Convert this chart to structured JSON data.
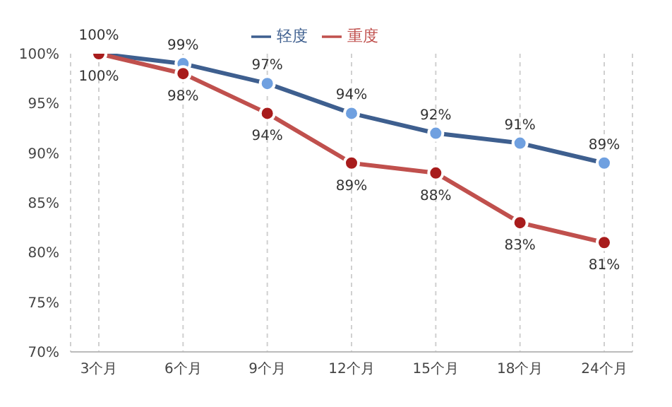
{
  "chart_data": {
    "type": "line",
    "categories": [
      "3个月",
      "6个月",
      "9个月",
      "12个月",
      "15个月",
      "18个月",
      "24个月"
    ],
    "series": [
      {
        "name": "轻度",
        "color": "#3e5f8f",
        "values": [
          100,
          99,
          97,
          94,
          92,
          91,
          89
        ],
        "value_labels": [
          "100%",
          "99%",
          "97%",
          "94%",
          "92%",
          "91%",
          "89%"
        ]
      },
      {
        "name": "重度",
        "color": "#c0504d",
        "values": [
          100,
          98,
          94,
          89,
          88,
          83,
          81
        ],
        "value_labels": [
          "100%",
          "98%",
          "94%",
          "89%",
          "88%",
          "83%",
          "81%"
        ]
      }
    ],
    "ylim": [
      70,
      100
    ],
    "yticks": [
      {
        "value": 70,
        "label": "70%"
      },
      {
        "value": 75,
        "label": "75%"
      },
      {
        "value": 80,
        "label": "80%"
      },
      {
        "value": 85,
        "label": "85%"
      },
      {
        "value": 90,
        "label": "90%"
      },
      {
        "value": 95,
        "label": "95%"
      },
      {
        "value": 100,
        "label": "100%"
      }
    ],
    "grid": "x",
    "legend": "top",
    "marker": "circle",
    "line_style": "solid"
  }
}
